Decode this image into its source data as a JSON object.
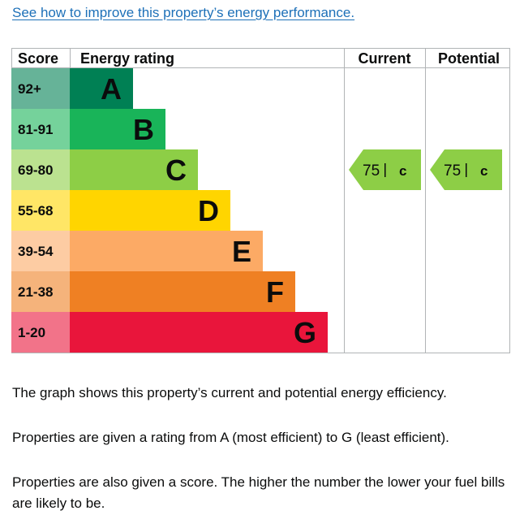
{
  "link": {
    "text": "See how to improve this property’s energy performance."
  },
  "table": {
    "headers": {
      "score": "Score",
      "rating": "Energy rating",
      "current": "Current",
      "potential": "Potential"
    },
    "bands": [
      {
        "score": "92+",
        "letter": "A",
        "color": "#008054",
        "score_bg": "#66b398"
      },
      {
        "score": "81-91",
        "letter": "B",
        "color": "#19b459",
        "score_bg": "#75d29b"
      },
      {
        "score": "69-80",
        "letter": "C",
        "color": "#8dce46",
        "score_bg": "#bbe290"
      },
      {
        "score": "55-68",
        "letter": "D",
        "color": "#ffd500",
        "score_bg": "#ffe666"
      },
      {
        "score": "39-54",
        "letter": "E",
        "color": "#fcaa65",
        "score_bg": "#fdcca3"
      },
      {
        "score": "21-38",
        "letter": "F",
        "color": "#ef8023",
        "score_bg": "#f5b37b"
      },
      {
        "score": "1-20",
        "letter": "G",
        "color": "#e9153b",
        "score_bg": "#f27389"
      }
    ],
    "current": {
      "score": "75",
      "letter": "C",
      "band_index": 2,
      "color": "#8dce46"
    },
    "potential": {
      "score": "75",
      "letter": "C",
      "band_index": 2,
      "color": "#8dce46"
    }
  },
  "paragraphs": [
    "The graph shows this property’s current and potential energy efficiency.",
    "Properties are given a rating from A (most efficient) to G (least efficient).",
    "Properties are also given a score. The higher the number the lower your fuel bills are likely to be."
  ]
}
